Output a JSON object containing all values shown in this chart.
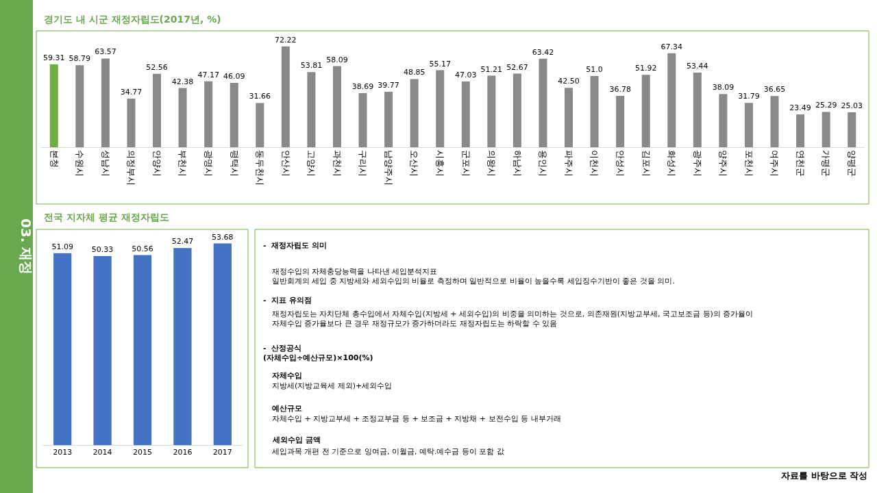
{
  "chart_data": [
    {
      "type": "bar",
      "title": "경기도 내 시군 재정자립도(2017년, %)",
      "categories": [
        "본청",
        "수원시",
        "성남시",
        "의정부시",
        "안양시",
        "부천시",
        "광명시",
        "평택시",
        "동두천시",
        "안산시",
        "고양시",
        "과천시",
        "구리시",
        "남양주시",
        "오산시",
        "시흥시",
        "군포시",
        "의왕시",
        "하남시",
        "용인시",
        "파주시",
        "이천시",
        "안성시",
        "김포시",
        "화성시",
        "광주시",
        "양주시",
        "포천시",
        "여주시",
        "연천군",
        "가평군",
        "양평군"
      ],
      "values": [
        59.31,
        58.79,
        63.57,
        34.77,
        52.56,
        42.38,
        47.17,
        46.09,
        31.66,
        72.22,
        53.81,
        58.09,
        38.69,
        39.77,
        48.85,
        55.17,
        47.03,
        51.21,
        52.67,
        63.42,
        42.5,
        51.0,
        36.78,
        51.92,
        67.34,
        53.44,
        38.09,
        31.79,
        36.65,
        23.49,
        25.29,
        25.03
      ],
      "value_labels": [
        "59.31",
        "58.79",
        "63.57",
        "34.77",
        "52.56",
        "42.38",
        "47.17",
        "46.09",
        "31.66",
        "72.22",
        "53.81",
        "58.09",
        "38.69",
        "39.77",
        "48.85",
        "55.17",
        "47.03",
        "51.21",
        "52.67",
        "63.42",
        "42.50",
        "51.0",
        "36.78",
        "51.92",
        "67.34",
        "53.44",
        "38.09",
        "31.79",
        "36.65",
        "23.49",
        "25.29",
        "25.03"
      ],
      "colors": [
        "#70ad47",
        "#898989",
        "#898989",
        "#898989",
        "#898989",
        "#898989",
        "#898989",
        "#898989",
        "#898989",
        "#898989",
        "#898989",
        "#898989",
        "#898989",
        "#898989",
        "#898989",
        "#898989",
        "#898989",
        "#898989",
        "#898989",
        "#898989",
        "#898989",
        "#898989",
        "#898989",
        "#898989",
        "#898989",
        "#898989",
        "#898989",
        "#898989",
        "#898989",
        "#898989",
        "#898989",
        "#898989"
      ],
      "tick_labels": "x"
    },
    {
      "type": "bar",
      "title": "전국 지자체 평균 재정자립도",
      "categories": [
        "2013",
        "2014",
        "2015",
        "2016",
        "2017"
      ],
      "values": [
        51.09,
        50.33,
        50.56,
        52.47,
        53.68
      ],
      "color": "#4472c4",
      "data_labels": true,
      "tick_labels": "x"
    },
    {
      "type": "other",
      "annotations": [
        "-  재정자립도 의미",
        "재정수입의 자체충당능력을 나타낸 세입분석지표\n일반회계의 세입 중 지방세와 세외수입의 비율로 측정하며 일반적으로 비율이 높을수록 세입징수기반이 좋은 것을 의미.",
        "-  지표 유의점",
        "재정자립도는 자치단체 총수입에서 자체수입(지방세 + 세외수입)의 비중을 의미하는 것으로, 의존재원(지방교부세, 국고보조금 등)의 증가율이\n자체수입 증가율보다 큰 경우 재정규모가 증가하더라도 재정자립도는 하락할 수 있음",
        "-  산정공식\n(자체수입÷예산규모)×100(%)",
        "자체수입",
        "지방세(지방교육세 제외)+세외수입",
        "예산규모",
        "자체수입 + 지방교부세 + 조정교부금 등 + 보조금 + 지방채 + 보전수입 등 내부거래",
        "세외수입 금액",
        "세입과목 개편 전 기준으로 잉여금, 이월금, 예탁.예수금 등이 포함 값",
        "03. 재정",
        "자료를 바탕으로 작성"
      ]
    }
  ]
}
